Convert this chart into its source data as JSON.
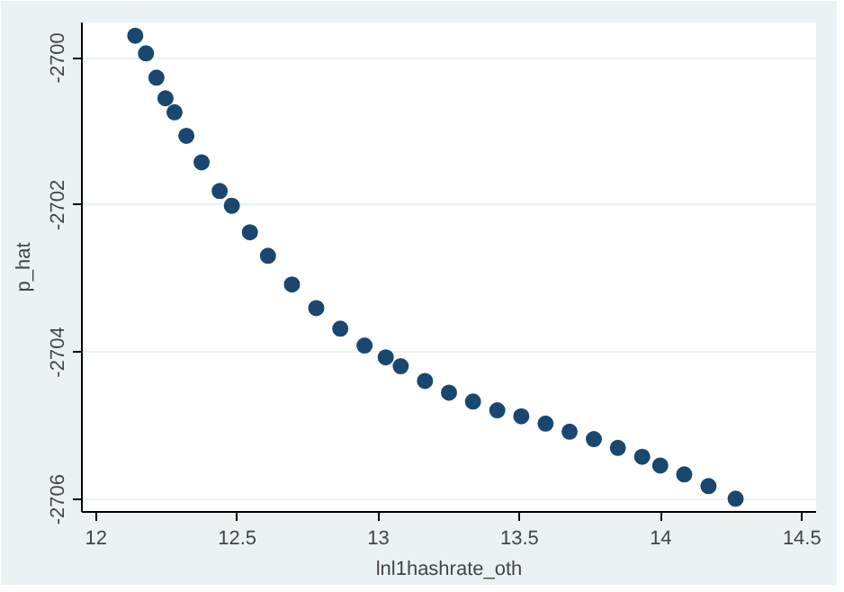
{
  "chart_data": {
    "type": "scatter",
    "xlabel": "lnl1hashrate_oth",
    "ylabel": "p_hat",
    "x": [
      12.139,
      12.177,
      12.214,
      12.246,
      12.278,
      12.32,
      12.374,
      12.438,
      12.481,
      12.545,
      12.609,
      12.694,
      12.78,
      12.865,
      12.951,
      13.026,
      13.079,
      13.165,
      13.25,
      13.335,
      13.421,
      13.506,
      13.592,
      13.677,
      13.763,
      13.848,
      13.934,
      13.998,
      14.083,
      14.169,
      14.265
    ],
    "values": [
      -2699.7,
      -2699.94,
      -2700.27,
      -2700.55,
      -2700.74,
      -2701.06,
      -2701.42,
      -2701.81,
      -2702.01,
      -2702.37,
      -2702.69,
      -2703.08,
      -2703.4,
      -2703.68,
      -2703.91,
      -2704.07,
      -2704.19,
      -2704.39,
      -2704.55,
      -2704.67,
      -2704.79,
      -2704.87,
      -2704.97,
      -2705.08,
      -2705.18,
      -2705.3,
      -2705.42,
      -2705.54,
      -2705.66,
      -2705.82,
      -2705.99
    ],
    "color": "#1a476f",
    "marker": "circle",
    "xlim": [
      11.95,
      14.55
    ],
    "ylim": [
      -2706.17,
      -2699.52
    ],
    "xticks": [
      12,
      12.5,
      13,
      13.5,
      14,
      14.5
    ],
    "yticks": [
      -2706,
      -2704,
      -2702,
      -2700
    ],
    "grid": "y"
  }
}
